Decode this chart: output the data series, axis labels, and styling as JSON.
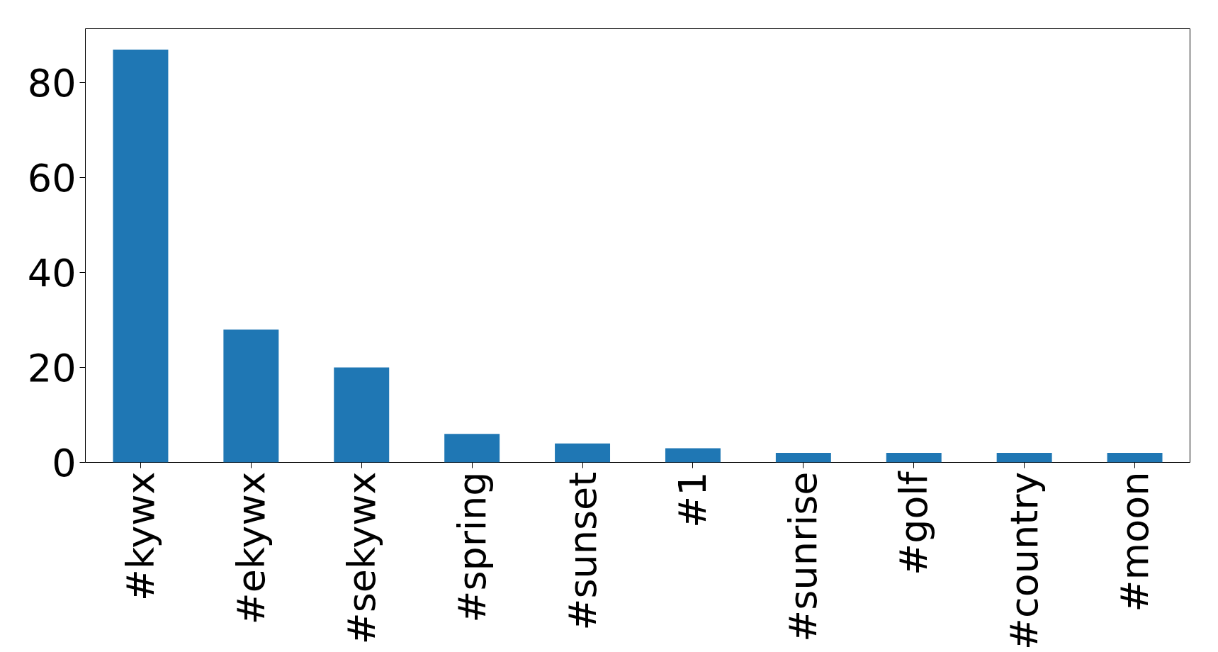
{
  "chart_data": {
    "type": "bar",
    "categories": [
      "#kywx",
      "#ekywx",
      "#sekywx",
      "#spring",
      "#sunset",
      "#1",
      "#sunrise",
      "#golf",
      "#country",
      "#moon"
    ],
    "values": [
      87,
      28,
      20,
      6,
      4,
      3,
      2,
      2,
      2,
      2
    ],
    "color": "#1f77b4",
    "ylim": [
      0,
      91.4
    ],
    "yticks": [
      0,
      20,
      40,
      60,
      80
    ],
    "grid": false
  }
}
